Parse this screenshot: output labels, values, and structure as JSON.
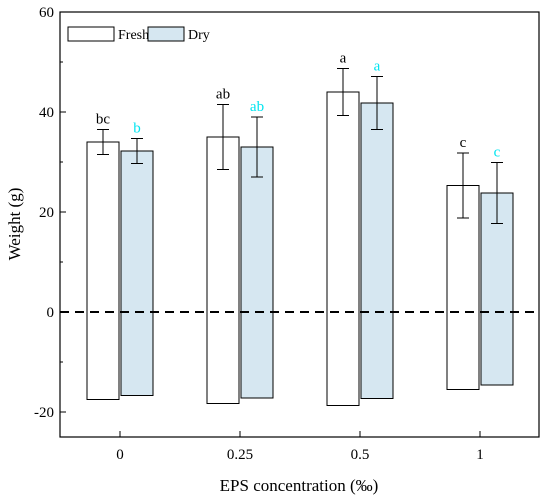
{
  "chart_data": {
    "type": "bar",
    "title": "",
    "xlabel": "EPS concentration (‰)",
    "ylabel": "Weight (g)",
    "categories": [
      "0",
      "0.25",
      "0.5",
      "1"
    ],
    "ylim": [
      -25,
      60
    ],
    "yticks": [
      -20,
      0,
      20,
      40,
      60
    ],
    "grid": false,
    "legend": "top-left",
    "reference_line": {
      "y": 0,
      "style": "dashed"
    },
    "series": [
      {
        "name": "Fresh",
        "fill": "#ffffff",
        "label_color": "#000000",
        "values": [
          34,
          35,
          44,
          25.3
        ],
        "errors": [
          2.5,
          6.5,
          4.7,
          6.5
        ],
        "negative_values": [
          -17.5,
          -18.3,
          -18.7,
          -15.5
        ],
        "sig_labels": [
          "bc",
          "ab",
          "a",
          "c"
        ]
      },
      {
        "name": "Dry",
        "fill": "#d6e7f1",
        "label_color": "#00e5f0",
        "values": [
          32.2,
          33,
          41.8,
          23.8
        ],
        "errors": [
          2.5,
          6,
          5.3,
          6.1
        ],
        "negative_values": [
          -16.7,
          -17.2,
          -17.3,
          -14.6
        ],
        "sig_labels": [
          "b",
          "ab",
          "a",
          "c"
        ]
      }
    ]
  }
}
